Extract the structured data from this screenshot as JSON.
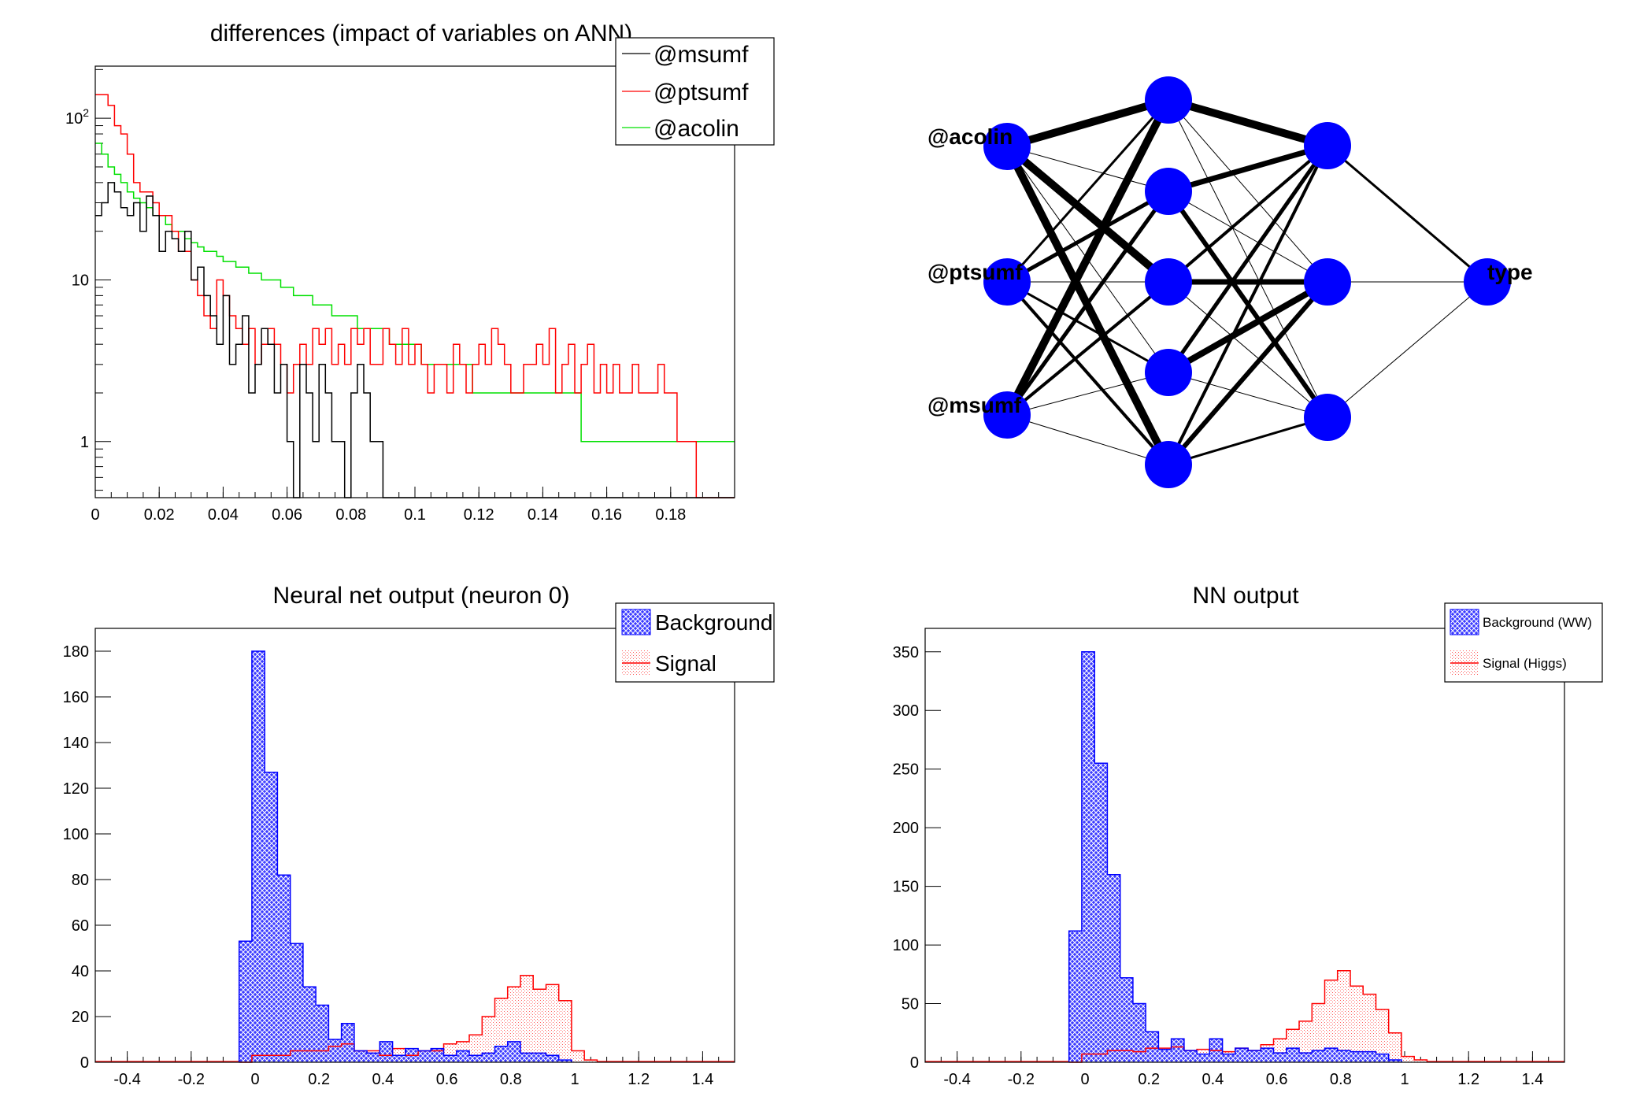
{
  "chart_data": [
    {
      "type": "line",
      "title": "differences (impact of variables on ANN)",
      "xlabel": "",
      "ylabel": "",
      "xlim": [
        0,
        0.2
      ],
      "ylim": [
        0.45,
        210
      ],
      "yscale": "log",
      "xticks": [
        "0",
        "0.02",
        "0.04",
        "0.06",
        "0.08",
        "0.1",
        "0.12",
        "0.14",
        "0.16",
        "0.18"
      ],
      "yticks": [
        "1",
        "10",
        "10^2"
      ],
      "legend_position": "top-right",
      "binwidth": 0.002,
      "series": [
        {
          "name": "@msumf",
          "color": "#000000",
          "values": [
            25,
            30,
            40,
            35,
            28,
            25,
            30,
            20,
            33,
            25,
            15,
            20,
            18,
            15,
            20,
            10,
            12,
            8,
            6,
            4,
            8,
            3,
            4,
            6,
            2,
            3,
            5,
            4,
            2,
            3,
            1,
            0,
            3,
            2,
            1,
            3,
            2,
            1,
            1,
            0,
            2,
            3,
            2,
            1,
            1,
            0,
            0,
            0,
            0,
            0,
            0,
            0,
            0,
            0,
            0,
            0,
            0,
            0,
            0,
            0,
            0,
            0,
            0,
            0,
            0,
            0,
            0,
            0,
            0,
            0,
            0,
            0,
            0,
            0,
            0,
            0,
            0,
            0,
            0,
            0,
            0,
            0,
            0,
            0,
            0,
            0,
            0,
            0,
            0,
            0,
            0,
            0,
            0,
            0,
            0,
            0,
            0,
            0,
            0,
            0
          ]
        },
        {
          "name": "@ptsumf",
          "color": "#ff0000",
          "values": [
            140,
            140,
            120,
            90,
            80,
            60,
            40,
            35,
            35,
            30,
            25,
            25,
            20,
            15,
            15,
            10,
            8,
            6,
            5,
            10,
            8,
            6,
            5,
            4,
            5,
            3,
            4,
            5,
            4,
            3,
            2,
            3,
            4,
            3,
            5,
            4,
            5,
            3,
            4,
            3,
            5,
            4,
            5,
            3,
            3,
            5,
            4,
            3,
            5,
            3,
            4,
            3,
            2,
            3,
            3,
            2,
            4,
            3,
            2,
            3,
            4,
            3,
            5,
            4,
            3,
            2,
            2,
            3,
            3,
            4,
            3,
            5,
            2,
            3,
            4,
            2,
            3,
            4,
            2,
            3,
            2,
            3,
            2,
            2,
            3,
            2,
            2,
            2,
            3,
            2,
            2,
            1,
            1,
            1,
            0,
            0,
            0,
            0,
            0,
            0
          ]
        },
        {
          "name": "@acolin",
          "color": "#00e000",
          "values": [
            70,
            60,
            50,
            45,
            40,
            35,
            32,
            30,
            28,
            25,
            25,
            22,
            20,
            20,
            18,
            17,
            16,
            15,
            15,
            14,
            13,
            13,
            12,
            12,
            11,
            11,
            10,
            10,
            10,
            9,
            9,
            8,
            8,
            8,
            7,
            7,
            7,
            6,
            6,
            6,
            6,
            5,
            5,
            5,
            5,
            5,
            4,
            4,
            4,
            4,
            4,
            3,
            3,
            3,
            3,
            3,
            3,
            3,
            3,
            2,
            2,
            2,
            2,
            2,
            2,
            2,
            2,
            2,
            2,
            2,
            2,
            2,
            2,
            2,
            2,
            2,
            1,
            1,
            1,
            1,
            1,
            1,
            1,
            1,
            1,
            1,
            1,
            1,
            1,
            1,
            1,
            1,
            1,
            1,
            1,
            1,
            1,
            1,
            1,
            1
          ]
        }
      ]
    },
    {
      "type": "bar",
      "title": "Neural net output (neuron 0)",
      "xlabel": "",
      "ylabel": "",
      "xlim": [
        -0.5,
        1.5
      ],
      "ylim": [
        0,
        190
      ],
      "xticks": [
        "-0.4",
        "-0.2",
        "0",
        "0.2",
        "0.4",
        "0.6",
        "0.8",
        "1",
        "1.2",
        "1.4"
      ],
      "yticks": [
        "0",
        "20",
        "40",
        "60",
        "80",
        "100",
        "120",
        "140",
        "160",
        "180"
      ],
      "legend_position": "top-right",
      "bin_edges_start": -0.05,
      "binwidth": 0.04,
      "series": [
        {
          "name": "Background",
          "color": "#0000ff",
          "values": [
            53,
            180,
            127,
            82,
            52,
            33,
            25,
            10,
            17,
            5,
            4,
            9,
            3,
            6,
            5,
            6,
            3,
            5,
            3,
            4,
            7,
            9,
            4,
            4,
            3,
            1
          ]
        },
        {
          "name": "Signal",
          "color": "#ff0000",
          "values": [
            0,
            3,
            3,
            3,
            5,
            5,
            5,
            7,
            8,
            5,
            5,
            3,
            6,
            3,
            5,
            5,
            8,
            9,
            12,
            20,
            28,
            33,
            38,
            32,
            34,
            27,
            5,
            1
          ]
        }
      ]
    },
    {
      "type": "bar",
      "title": "NN output",
      "xlabel": "",
      "ylabel": "",
      "xlim": [
        -0.5,
        1.5
      ],
      "ylim": [
        0,
        370
      ],
      "xticks": [
        "-0.4",
        "-0.2",
        "0",
        "0.2",
        "0.4",
        "0.6",
        "0.8",
        "1",
        "1.2",
        "1.4"
      ],
      "yticks": [
        "0",
        "50",
        "100",
        "150",
        "200",
        "250",
        "300",
        "350"
      ],
      "legend_position": "top-right",
      "bin_edges_start": -0.05,
      "binwidth": 0.04,
      "series": [
        {
          "name": "Background (WW)",
          "color": "#0000ff",
          "values": [
            112,
            350,
            255,
            160,
            72,
            50,
            26,
            11,
            20,
            10,
            7,
            20,
            7,
            12,
            10,
            12,
            8,
            12,
            8,
            10,
            12,
            10,
            9,
            9,
            7,
            2
          ]
        },
        {
          "name": "Signal (Higgs)",
          "color": "#ff0000",
          "values": [
            0,
            7,
            7,
            10,
            10,
            9,
            12,
            12,
            13,
            10,
            11,
            10,
            9,
            12,
            10,
            15,
            20,
            28,
            35,
            50,
            70,
            78,
            65,
            58,
            45,
            25,
            5,
            2
          ]
        }
      ]
    }
  ],
  "network": {
    "input_labels": [
      "@acolin",
      "@ptsumf",
      "@msumf"
    ],
    "output_label": "type",
    "node_color": "#0000ff"
  }
}
